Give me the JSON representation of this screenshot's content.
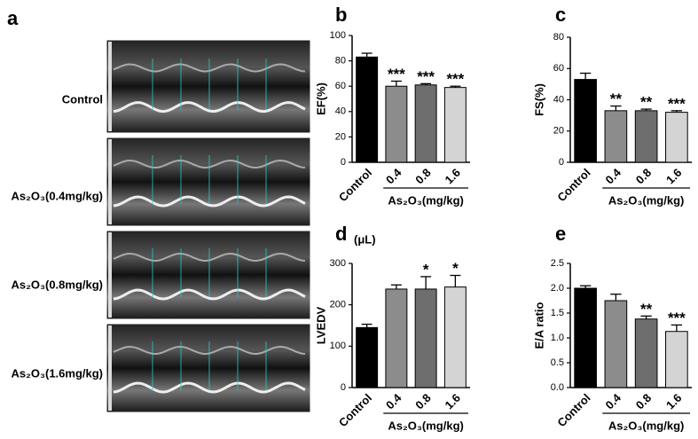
{
  "panel_a": {
    "letter": "a",
    "labels": [
      "Control",
      "As₂O₃(0.4mg/kg)",
      "As₂O₃(0.8mg/kg)",
      "As₂O₃(1.6mg/kg)"
    ]
  },
  "chart_data": [
    {
      "type": "bar",
      "letter": "b",
      "ylabel": "EF(%)",
      "categories": [
        "Control",
        "0.4",
        "0.8",
        "1.6"
      ],
      "group_label": "As₂O₃(mg/kg)",
      "values": [
        83,
        60,
        61,
        59
      ],
      "errors": [
        3,
        4,
        1,
        1
      ],
      "significance": [
        null,
        "***",
        "***",
        "***"
      ],
      "colors": [
        "#000000",
        "#8c8c8c",
        "#6e6e6e",
        "#d4d4d4"
      ],
      "ylim": [
        0,
        100
      ],
      "yticks": [
        0,
        20,
        40,
        60,
        80,
        100
      ]
    },
    {
      "type": "bar",
      "letter": "c",
      "ylabel": "FS(%)",
      "categories": [
        "Control",
        "0.4",
        "0.8",
        "1.6"
      ],
      "group_label": "As₂O₃(mg/kg)",
      "values": [
        53,
        33,
        33,
        32
      ],
      "errors": [
        4,
        3,
        1,
        1
      ],
      "significance": [
        null,
        "**",
        "**",
        "***"
      ],
      "colors": [
        "#000000",
        "#8c8c8c",
        "#6e6e6e",
        "#d4d4d4"
      ],
      "ylim": [
        0,
        80
      ],
      "yticks": [
        0,
        20,
        40,
        60,
        80
      ]
    },
    {
      "type": "bar",
      "letter": "d",
      "ylabel": "LVEDV",
      "unit": "(μL)",
      "categories": [
        "Control",
        "0.4",
        "0.8",
        "1.6"
      ],
      "group_label": "As₂O₃(mg/kg)",
      "values": [
        145,
        238,
        238,
        243
      ],
      "errors": [
        8,
        10,
        30,
        28
      ],
      "significance": [
        null,
        null,
        "*",
        "*"
      ],
      "colors": [
        "#000000",
        "#8c8c8c",
        "#6e6e6e",
        "#d4d4d4"
      ],
      "ylim": [
        0,
        300
      ],
      "yticks": [
        0,
        100,
        200,
        300
      ]
    },
    {
      "type": "bar",
      "letter": "e",
      "ylabel": "E/A ratio",
      "categories": [
        "Control",
        "0.4",
        "0.8",
        "1.6"
      ],
      "group_label": "As₂O₃(mg/kg)",
      "values": [
        2.0,
        1.75,
        1.38,
        1.13
      ],
      "errors": [
        0.05,
        0.13,
        0.06,
        0.13
      ],
      "significance": [
        null,
        null,
        "**",
        "***"
      ],
      "colors": [
        "#000000",
        "#8c8c8c",
        "#6e6e6e",
        "#d4d4d4"
      ],
      "ylim": [
        0,
        2.5
      ],
      "yticks": [
        {
          "value": 0,
          "label": "0.0"
        },
        0.5,
        {
          "value": 1,
          "label": "1.0"
        },
        1.5,
        {
          "value": 2,
          "label": "2.0"
        },
        2.5
      ]
    }
  ]
}
